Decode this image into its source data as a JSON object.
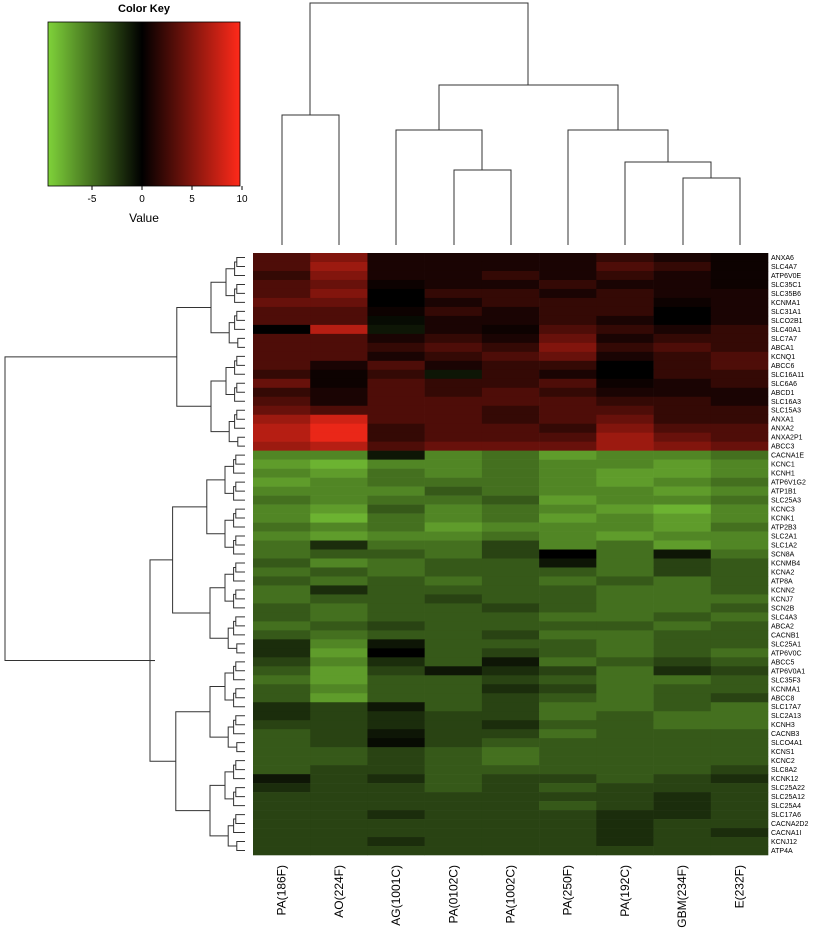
{
  "chart_data": {
    "type": "heatmap",
    "color_key": {
      "title": "Color Key",
      "label": "Value",
      "lim": [
        -9.4,
        9.8
      ],
      "ticks": [
        -5,
        0,
        5,
        10
      ]
    },
    "colors": {
      "low": "#7fd23a",
      "mid": "#000000",
      "high": "#ff2a1a"
    },
    "columns": [
      "PA(186F)",
      "AO(224F)",
      "AG(1001C)",
      "PA(0102C)",
      "PA(1002C)",
      "PA(250F)",
      "PA(192C)",
      "GBM(234F)",
      "E(232F)"
    ],
    "rows": [
      "ANXA6",
      "SLC4A7",
      "ATP6V0E",
      "SLC35C1",
      "SLC35B6",
      "KCNMA1",
      "SLC31A1",
      "SLCO2B1",
      "SLC40A1",
      "SLC7A7",
      "ABCA1",
      "KCNQ1",
      "ABCC6",
      "SLC16A11",
      "SLC6A6",
      "ABCD1",
      "SLC16A3",
      "SLC15A3",
      "ANXA1",
      "ANXA2",
      "ANXA2P1",
      "ABCC3",
      "CACNA1E",
      "KCNC1",
      "KCNH1",
      "ATP6V1G2",
      "ATP1B1",
      "SLC25A3",
      "KCNC3",
      "KCNK1",
      "ATP2B3",
      "SLC2A1",
      "SLC1A2",
      "SCN8A",
      "KCNMB4",
      "KCNA2",
      "ATP8A",
      "KCNN2",
      "KCNJ7",
      "SCN2B",
      "SLC4A3",
      "ABCA2",
      "CACNB1",
      "SLC25A1",
      "ATP6V0C",
      "ABCC5",
      "ATP6V0A1",
      "SLC35F3",
      "KCNMA1",
      "ABCC8",
      "SLC17A7",
      "SLC2A13",
      "KCNH3",
      "CACNB3",
      "SLCO4A1",
      "KCNS1",
      "KCNC2",
      "SLC8A2",
      "KCNK12",
      "SLC25A22",
      "SLC25A12",
      "SLC25A4",
      "SLC17A6",
      "CACNA2D2",
      "CACNA1I",
      "KCNJ12",
      "ATP4A"
    ],
    "values": [
      [
        3,
        5,
        1,
        1,
        1,
        1,
        2,
        1,
        0.5
      ],
      [
        3,
        6,
        1,
        1,
        1,
        1,
        3,
        2,
        0.5
      ],
      [
        2,
        5,
        1,
        1,
        2,
        1,
        2,
        1,
        0.5
      ],
      [
        3,
        4,
        0.5,
        1,
        1,
        2,
        1,
        1,
        0.5
      ],
      [
        3,
        5,
        0,
        2,
        2,
        1,
        2,
        1,
        1
      ],
      [
        4,
        4,
        0,
        1,
        2,
        2,
        2,
        0.5,
        1
      ],
      [
        3,
        3,
        0.5,
        2,
        1,
        2,
        2,
        0,
        1
      ],
      [
        3,
        3,
        -0.5,
        1,
        1,
        2,
        1,
        0,
        1
      ],
      [
        0,
        7,
        -1,
        1,
        0.5,
        3,
        2,
        1,
        2
      ],
      [
        3,
        3,
        1,
        2,
        1,
        4,
        1,
        2,
        2
      ],
      [
        3,
        3,
        2,
        3,
        2,
        5,
        2,
        3,
        2
      ],
      [
        3,
        3,
        1,
        2,
        3,
        4,
        1,
        2,
        3
      ],
      [
        3,
        1,
        3,
        1,
        2,
        2,
        0,
        2,
        3
      ],
      [
        2,
        0.5,
        2,
        -1,
        2,
        1,
        0,
        2,
        2
      ],
      [
        4,
        0.5,
        3,
        2,
        2,
        3,
        0.5,
        1,
        2
      ],
      [
        2,
        1,
        3,
        2,
        3,
        2,
        1,
        1,
        1
      ],
      [
        3,
        1,
        3,
        3,
        3,
        3,
        2,
        2,
        1
      ],
      [
        4,
        3,
        3,
        3,
        2,
        3,
        3,
        2,
        2
      ],
      [
        6,
        8,
        3,
        3,
        2,
        3,
        4,
        2,
        2
      ],
      [
        7,
        9,
        2,
        3,
        3,
        2,
        5,
        3,
        3
      ],
      [
        7,
        9,
        2,
        3,
        3,
        3,
        6,
        4,
        3
      ],
      [
        6,
        7,
        3,
        4,
        4,
        4,
        6,
        5,
        4
      ],
      [
        -6,
        -6,
        -1,
        -6,
        -5,
        -7,
        -6,
        -6,
        -5
      ],
      [
        -7,
        -8,
        -6,
        -6,
        -5,
        -6,
        -6,
        -7,
        -6
      ],
      [
        -6,
        -7,
        -5,
        -6,
        -5,
        -6,
        -7,
        -7,
        -6
      ],
      [
        -7,
        -6,
        -5,
        -5,
        -5,
        -6,
        -7,
        -6,
        -5
      ],
      [
        -6,
        -6,
        -6,
        -4,
        -5,
        -6,
        -6,
        -7,
        -6
      ],
      [
        -5,
        -6,
        -5,
        -5,
        -4,
        -7,
        -6,
        -6,
        -5
      ],
      [
        -6,
        -7,
        -4,
        -6,
        -5,
        -6,
        -7,
        -8,
        -6
      ],
      [
        -6,
        -8,
        -5,
        -6,
        -5,
        -7,
        -6,
        -7,
        -6
      ],
      [
        -5,
        -6,
        -5,
        -7,
        -6,
        -6,
        -6,
        -7,
        -5
      ],
      [
        -6,
        -7,
        -6,
        -6,
        -5,
        -6,
        -7,
        -6,
        -6
      ],
      [
        -5,
        -2,
        -5,
        -5,
        -3,
        -6,
        -5,
        -7,
        -6
      ],
      [
        -5,
        -4,
        -4,
        -5,
        -3,
        0,
        -5,
        -1,
        -5
      ],
      [
        -4,
        -6,
        -5,
        -4,
        -4,
        -1,
        -5,
        -3,
        -4
      ],
      [
        -5,
        -4,
        -5,
        -4,
        -4,
        -4,
        -5,
        -3,
        -4
      ],
      [
        -4,
        -5,
        -4,
        -5,
        -4,
        -5,
        -4,
        -5,
        -4
      ],
      [
        -5,
        -2,
        -4,
        -4,
        -4,
        -4,
        -5,
        -5,
        -4
      ],
      [
        -5,
        -4,
        -4,
        -3,
        -4,
        -4,
        -5,
        -5,
        -5
      ],
      [
        -4,
        -5,
        -4,
        -4,
        -3,
        -4,
        -5,
        -5,
        -4
      ],
      [
        -4,
        -5,
        -4,
        -4,
        -4,
        -5,
        -5,
        -4,
        -5
      ],
      [
        -5,
        -4,
        -3,
        -4,
        -4,
        -4,
        -4,
        -5,
        -4
      ],
      [
        -4,
        -5,
        -4,
        -4,
        -3,
        -5,
        -5,
        -4,
        -4
      ],
      [
        -2,
        -6,
        -1,
        -4,
        -4,
        -4,
        -5,
        -4,
        -4
      ],
      [
        -2,
        -7,
        0,
        -4,
        -3,
        -4,
        -5,
        -4,
        -5
      ],
      [
        -3,
        -6,
        -2,
        -4,
        -1,
        -5,
        -4,
        -3,
        -4
      ],
      [
        -4,
        -7,
        -3,
        -1,
        -2,
        -3,
        -5,
        -2,
        -3
      ],
      [
        -5,
        -7,
        -4,
        -4,
        -3,
        -4,
        -5,
        -5,
        -4
      ],
      [
        -4,
        -6,
        -4,
        -4,
        -2,
        -3,
        -5,
        -4,
        -4
      ],
      [
        -4,
        -7,
        -4,
        -4,
        -3,
        -4,
        -5,
        -4,
        -3
      ],
      [
        -2,
        -3,
        -1,
        -4,
        -3,
        -5,
        -5,
        -4,
        -5
      ],
      [
        -2,
        -3,
        -2,
        -3,
        -3,
        -5,
        -4,
        -5,
        -5
      ],
      [
        -3,
        -3,
        -2,
        -3,
        -2,
        -4,
        -4,
        -5,
        -5
      ],
      [
        -4,
        -3,
        -1,
        -3,
        -3,
        -5,
        -4,
        -4,
        -4
      ],
      [
        -4,
        -3,
        -0.5,
        -3,
        -4,
        -4,
        -4,
        -4,
        -4
      ],
      [
        -4,
        -4,
        -3,
        -4,
        -5,
        -4,
        -4,
        -4,
        -4
      ],
      [
        -4,
        -4,
        -3,
        -4,
        -5,
        -4,
        -4,
        -4,
        -4
      ],
      [
        -4,
        -3,
        -3,
        -4,
        -4,
        -4,
        -4,
        -4,
        -3
      ],
      [
        -1,
        -3,
        -2,
        -4,
        -3,
        -3,
        -4,
        -3,
        -2
      ],
      [
        -2,
        -3,
        -3,
        -4,
        -3,
        -4,
        -3,
        -3,
        -3
      ],
      [
        -3,
        -3,
        -3,
        -3,
        -3,
        -3,
        -3,
        -2,
        -3
      ],
      [
        -3,
        -3,
        -3,
        -3,
        -3,
        -4,
        -3,
        -2,
        -3
      ],
      [
        -3,
        -3,
        -2,
        -3,
        -3,
        -3,
        -2,
        -2,
        -3
      ],
      [
        -3,
        -3,
        -3,
        -3,
        -3,
        -3,
        -2,
        -3,
        -3
      ],
      [
        -3,
        -3,
        -3,
        -3,
        -3,
        -3,
        -2,
        -3,
        -2
      ],
      [
        -3,
        -3,
        -2,
        -3,
        -3,
        -3,
        -2,
        -3,
        -3
      ],
      [
        -3,
        -3,
        -3,
        -3,
        -3,
        -3,
        -3,
        -3,
        -3
      ]
    ]
  }
}
